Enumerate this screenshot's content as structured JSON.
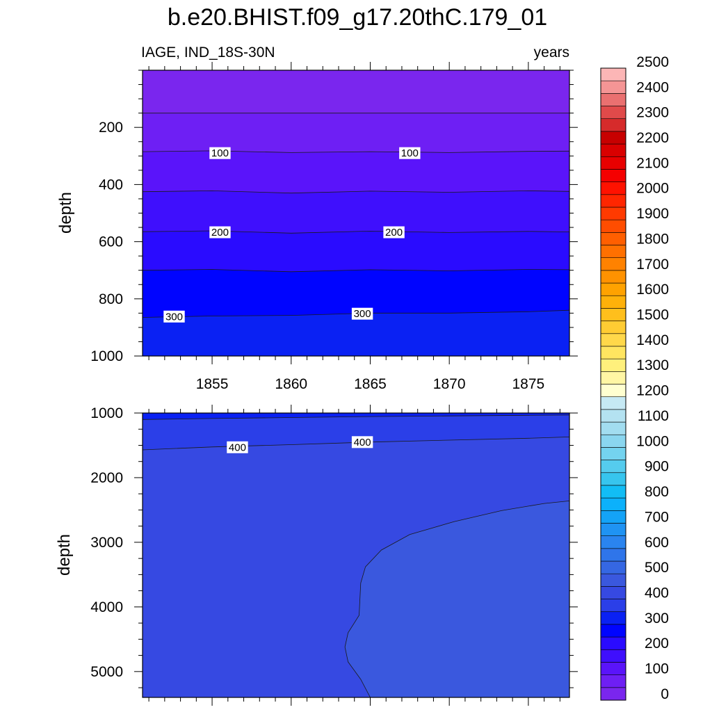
{
  "chart_data": {
    "type": "heatmap",
    "subtype": "filled-contour",
    "title": "b.e20.BHIST.f09_g17.20thC.179_01",
    "variable_label": "IAGE, IND_18S-30N",
    "units_label": "years",
    "ylabel": "depth",
    "xlim": [
      1850.6,
      1877.6
    ],
    "xticks": [
      1855,
      1860,
      1865,
      1870,
      1875
    ],
    "xtick_labels": [
      "1855",
      "1860",
      "1865",
      "1870",
      "1875"
    ],
    "colorbar": {
      "levels": [
        0,
        50,
        100,
        150,
        200,
        250,
        300,
        350,
        400,
        450,
        500,
        550,
        600,
        650,
        700,
        750,
        800,
        850,
        900,
        950,
        1000,
        1050,
        1100,
        1150,
        1200,
        1250,
        1300,
        1350,
        1400,
        1450,
        1500,
        1550,
        1600,
        1650,
        1700,
        1750,
        1800,
        1850,
        1900,
        1950,
        2000,
        2050,
        2100,
        2150,
        2200,
        2250,
        2300,
        2350,
        2400,
        2450,
        2500
      ],
      "labels": [
        "0",
        "100",
        "200",
        "300",
        "400",
        "500",
        "600",
        "700",
        "800",
        "900",
        "1000",
        "1100",
        "1200",
        "1300",
        "1400",
        "1500",
        "1600",
        "1700",
        "1800",
        "1900",
        "2000",
        "2100",
        "2200",
        "2300",
        "2400",
        "2500"
      ],
      "colors": [
        "#7a26ee",
        "#6e1ff4",
        "#5a14fa",
        "#3f0ffd",
        "#2a0bff",
        "#0004ff",
        "#0a21f3",
        "#2b3fe8",
        "#3649e2",
        "#3a58de",
        "#3567e3",
        "#2f75ea",
        "#2a84ef",
        "#1f93f3",
        "#14a3f7",
        "#0cb1fb",
        "#12bdf5",
        "#37c5ee",
        "#55ccee",
        "#74d3ef",
        "#8ad6ef",
        "#a2ddf0",
        "#b4e2f1",
        "#c6e9f4",
        "#ffffd0",
        "#fff6a4",
        "#fff07c",
        "#ffe560",
        "#ffd84a",
        "#ffcc33",
        "#ffbf1c",
        "#ffb10a",
        "#ffa200",
        "#ff9200",
        "#ff8200",
        "#ff7000",
        "#ff5f00",
        "#ff4d00",
        "#ff3a00",
        "#ff2600",
        "#ff1200",
        "#f50000",
        "#e80000",
        "#d90000",
        "#c70000",
        "#d62b2b",
        "#e04a4a",
        "#ea7070",
        "#f59595",
        "#fcb6b6"
      ]
    },
    "panels": [
      {
        "name": "upper",
        "ylim": [
          1000,
          0
        ],
        "yticks": [
          200,
          400,
          600,
          800,
          1000
        ],
        "ytick_labels": [
          "200",
          "400",
          "600",
          "800",
          "1000"
        ],
        "contour_lines": [
          {
            "level": 50,
            "x": [
              1850.6,
              1855,
              1860,
              1865,
              1870,
              1875,
              1877.6
            ],
            "y": [
              150,
              150,
              150,
              150,
              150,
              150,
              150
            ]
          },
          {
            "level": 100,
            "x": [
              1850.6,
              1855,
              1860,
              1865,
              1870,
              1875,
              1877.6
            ],
            "y": [
              285,
              282,
              288,
              285,
              288,
              284,
              283
            ]
          },
          {
            "level": 150,
            "x": [
              1850.6,
              1855,
              1860,
              1865,
              1870,
              1875,
              1877.6
            ],
            "y": [
              425,
              422,
              430,
              423,
              427,
              422,
              424
            ]
          },
          {
            "level": 200,
            "x": [
              1850.6,
              1855,
              1860,
              1865,
              1870,
              1875,
              1877.6
            ],
            "y": [
              565,
              562,
              570,
              563,
              568,
              564,
              566
            ]
          },
          {
            "level": 250,
            "x": [
              1850.6,
              1855,
              1860,
              1865,
              1870,
              1875,
              1877.6
            ],
            "y": [
              700,
              697,
              705,
              698,
              702,
              697,
              698
            ]
          },
          {
            "level": 300,
            "x": [
              1850.6,
              1855,
              1860,
              1865,
              1870,
              1875,
              1877.6
            ],
            "y": [
              865,
              860,
              858,
              850,
              850,
              845,
              840
            ]
          }
        ],
        "labels": [
          {
            "text": "100",
            "x": 1855.5,
            "y": 290
          },
          {
            "text": "100",
            "x": 1867.5,
            "y": 290
          },
          {
            "text": "200",
            "x": 1855.5,
            "y": 567
          },
          {
            "text": "200",
            "x": 1866.5,
            "y": 567
          },
          {
            "text": "300",
            "x": 1852.6,
            "y": 862
          },
          {
            "text": "300",
            "x": 1864.5,
            "y": 852
          }
        ]
      },
      {
        "name": "lower",
        "ylim": [
          5400,
          1000
        ],
        "yticks": [
          1000,
          2000,
          3000,
          4000,
          5000
        ],
        "ytick_labels": [
          "1000",
          "2000",
          "3000",
          "4000",
          "5000"
        ],
        "contour_lines": [
          {
            "level": 350,
            "x": [
              1850.6,
              1855,
              1860,
              1865,
              1870,
              1875,
              1877.6
            ],
            "y": [
              1100,
              1085,
              1070,
              1055,
              1045,
              1035,
              1030
            ]
          },
          {
            "level": 400,
            "x": [
              1850.6,
              1855,
              1860,
              1865,
              1870,
              1875,
              1877.6
            ],
            "y": [
              1570,
              1525,
              1490,
              1450,
              1420,
              1390,
              1370
            ]
          },
          {
            "level": 450,
            "x": [
              1865,
              1864.4,
              1863.6,
              1863.4,
              1863.6,
              1864.3,
              1864.4,
              1864.7,
              1865.7,
              1867.5,
              1870.3,
              1873.3,
              1876.0,
              1877.6
            ],
            "y": [
              5400,
              5120,
              4850,
              4620,
              4400,
              4130,
              3630,
              3380,
              3120,
              2880,
              2680,
              2510,
              2400,
              2360
            ]
          }
        ],
        "labels": [
          {
            "text": "400",
            "x": 1856.6,
            "y": 1530
          },
          {
            "text": "400",
            "x": 1864.5,
            "y": 1450
          }
        ]
      }
    ]
  }
}
